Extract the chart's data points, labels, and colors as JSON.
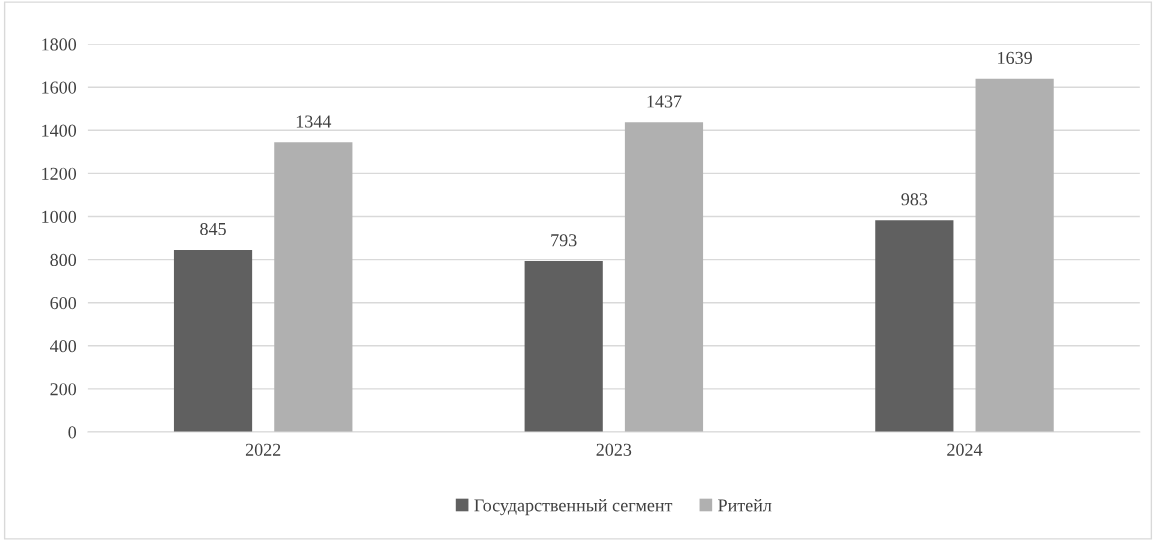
{
  "chart_data": {
    "type": "bar",
    "categories": [
      "2022",
      "2023",
      "2024"
    ],
    "series": [
      {
        "name": "Государственный сегмент",
        "color": "#606060",
        "values": [
          845,
          793,
          983
        ]
      },
      {
        "name": "Ритейл",
        "color": "#b0b0b0",
        "values": [
          1344,
          1437,
          1639
        ]
      }
    ],
    "ylim": [
      0,
      1800
    ],
    "yticks": [
      0,
      200,
      400,
      600,
      800,
      1000,
      1200,
      1400,
      1600,
      1800
    ],
    "grid": "y",
    "legend": "bottom",
    "data_labels": true
  }
}
